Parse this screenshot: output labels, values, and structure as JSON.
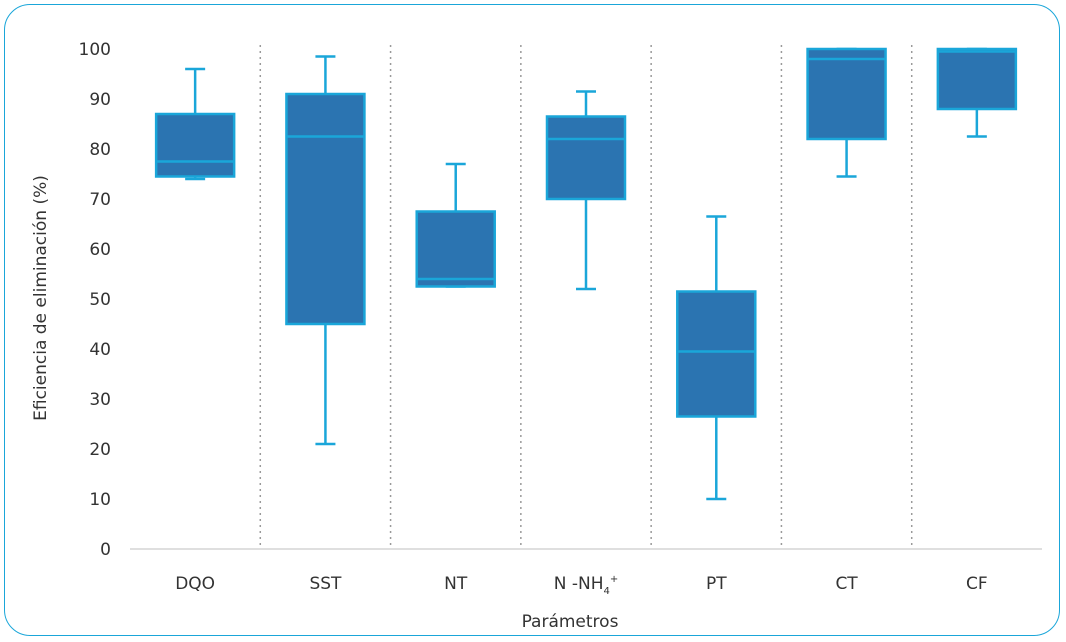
{
  "chart_data": {
    "type": "boxplot",
    "title": "",
    "xlabel": "Parámetros",
    "ylabel": "Eficiencia de eliminación (%)",
    "ylim": [
      0,
      100
    ],
    "yticks": [
      "0",
      "10",
      "20",
      "30",
      "40",
      "50",
      "60",
      "70",
      "80",
      "90",
      "100"
    ],
    "categories": [
      "DQO",
      "SST",
      "NT",
      "N -NH",
      "PT",
      "CT",
      "CF"
    ],
    "nh4_sub": "4",
    "nh4_sup": "+",
    "boxes": [
      {
        "min": 74,
        "q1": 74.5,
        "median": 77.5,
        "q3": 87,
        "max": 96
      },
      {
        "min": 21,
        "q1": 45,
        "median": 82.5,
        "q3": 91,
        "max": 98.5
      },
      {
        "min": 52.5,
        "q1": 52.5,
        "median": 54,
        "q3": 67.5,
        "max": 77
      },
      {
        "min": 52,
        "q1": 70,
        "median": 82,
        "q3": 86.5,
        "max": 91.5
      },
      {
        "min": 10,
        "q1": 26.5,
        "median": 39.5,
        "q3": 51.5,
        "max": 66.5
      },
      {
        "min": 74.5,
        "q1": 82,
        "median": 98,
        "q3": 100,
        "max": 100
      },
      {
        "min": 82.5,
        "q1": 88,
        "median": 99.5,
        "q3": 100,
        "max": 100
      }
    ],
    "grid": "vertical dotted separators",
    "colors": {
      "box_fill": "#2b74b1",
      "box_stroke": "#1aa6d9",
      "whisker": "#1aa6d9",
      "border": "#1aa6d9"
    }
  }
}
